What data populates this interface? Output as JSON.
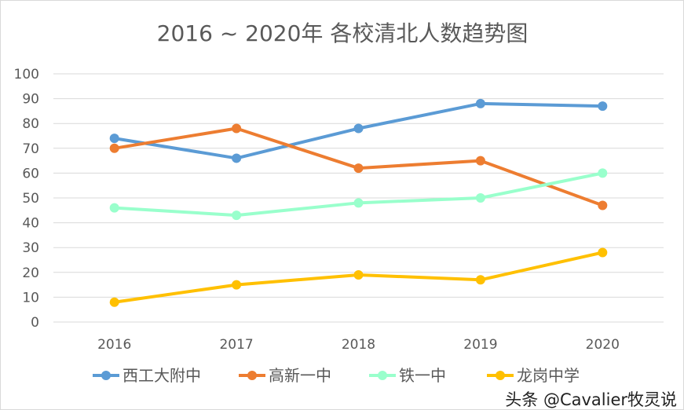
{
  "chart_data": {
    "type": "line",
    "title": "2016 ~ 2020年 各校清北人数趋势图",
    "categories": [
      "2016",
      "2017",
      "2018",
      "2019",
      "2020"
    ],
    "ylim": [
      0,
      100
    ],
    "yticks": [
      "0",
      "10",
      "20",
      "30",
      "40",
      "50",
      "60",
      "70",
      "80",
      "90",
      "100"
    ],
    "grid": true,
    "legend_position": "bottom",
    "series": [
      {
        "name": "西工大附中",
        "color": "#5b9bd5",
        "values": [
          74,
          66,
          78,
          88,
          87
        ]
      },
      {
        "name": "高新一中",
        "color": "#ed7d31",
        "values": [
          70,
          78,
          62,
          65,
          47
        ]
      },
      {
        "name": "铁一中",
        "color": "#99ffcc",
        "values": [
          46,
          43,
          48,
          50,
          60
        ]
      },
      {
        "name": "龙岗中学",
        "color": "#ffc000",
        "values": [
          8,
          15,
          19,
          17,
          28
        ]
      }
    ]
  },
  "watermark": "头条 @Cavalier牧灵说"
}
